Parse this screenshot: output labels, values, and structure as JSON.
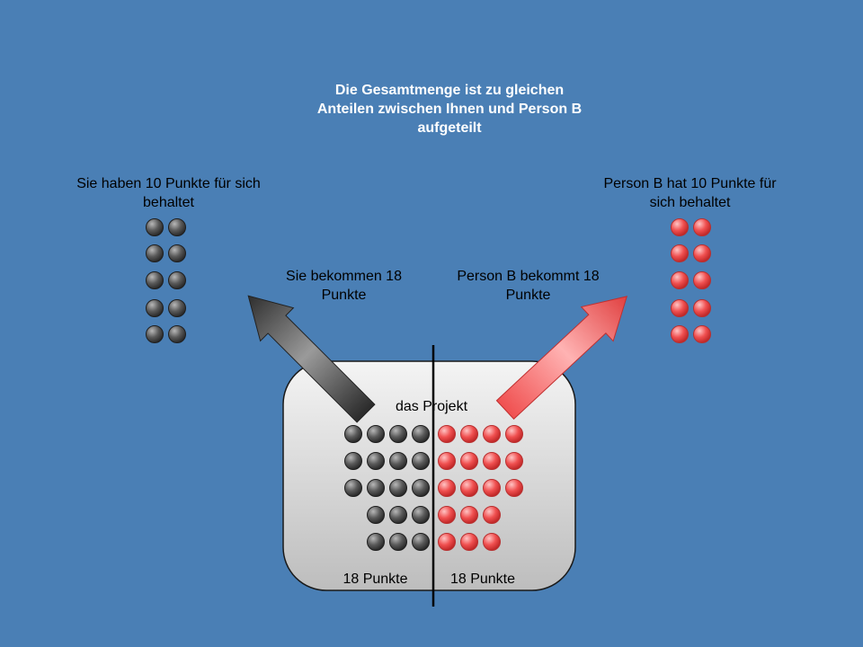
{
  "title": "Die Gesamtmenge ist zu gleichen Anteilen zwischen Ihnen und Person B aufgeteilt",
  "left_label": "Sie haben 10 Punkte für sich behaltet",
  "right_label": "Person B hat 10 Punkte für sich behaltet",
  "left_arrow_label": "Sie bekommen 18 Punkte",
  "right_arrow_label": "Person B bekommt 18 Punkte",
  "project_label": "das Projekt",
  "left_points_label": "18 Punkte",
  "right_points_label": "18 Punkte",
  "colors": {
    "background": "#4a7fb5",
    "grey_token": "#5a5a5a",
    "red_token": "#f05050",
    "title_text": "#ffffff"
  },
  "counts": {
    "kept_self": 10,
    "kept_other": 10,
    "project_self": 18,
    "project_other": 18
  }
}
